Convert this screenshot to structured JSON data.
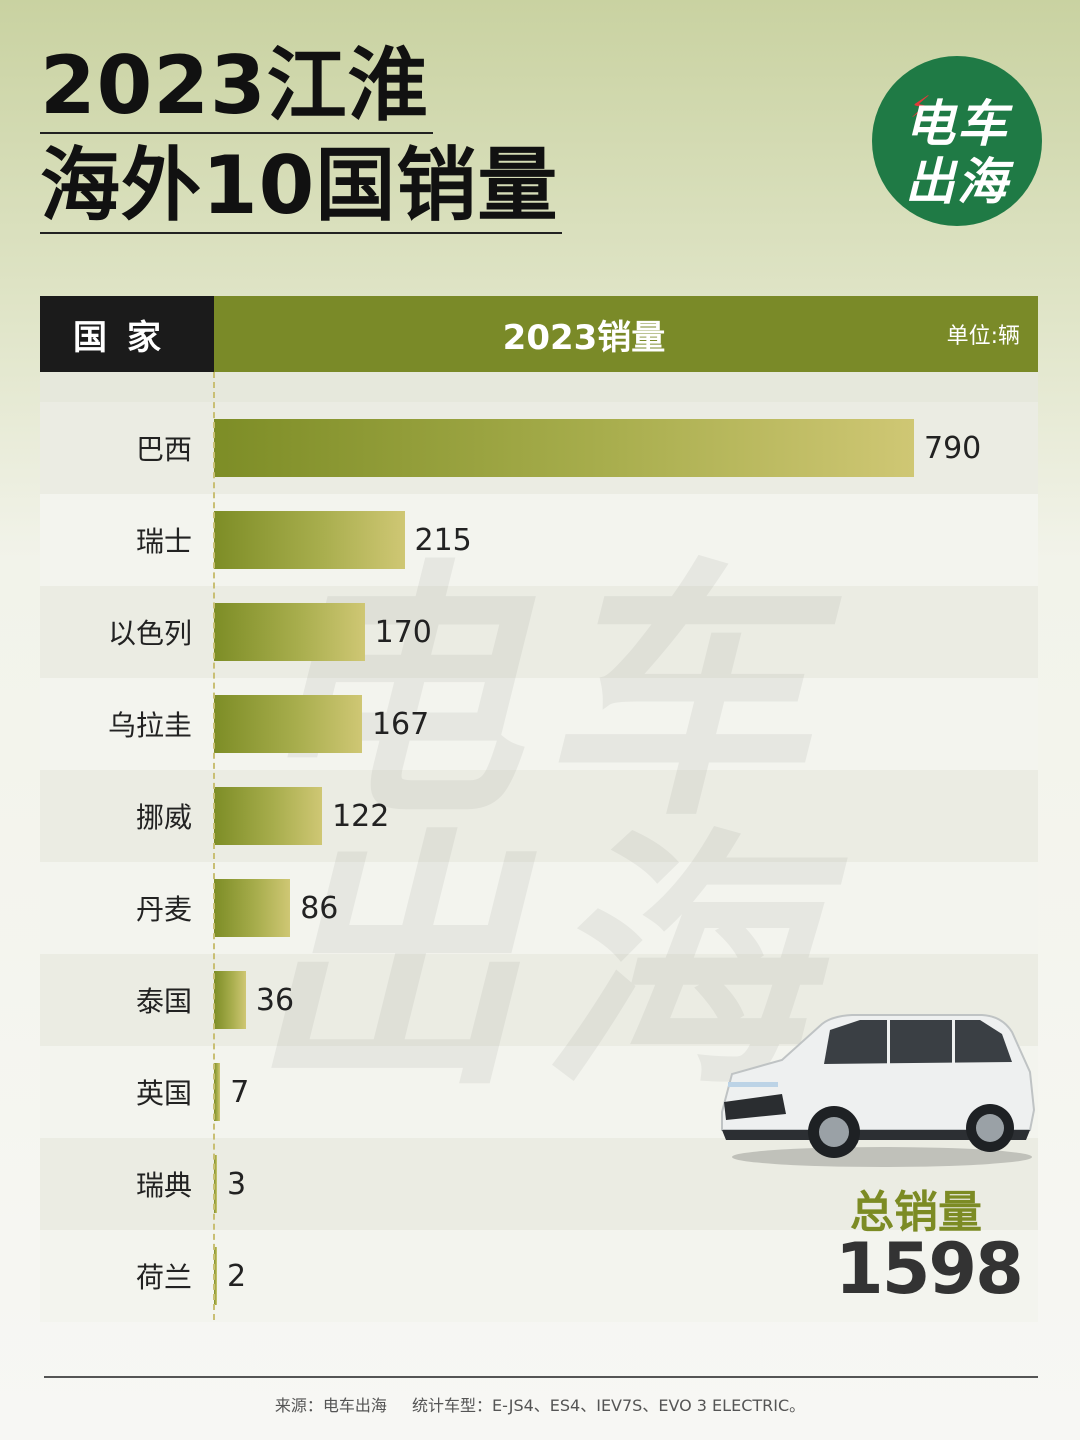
{
  "title": {
    "line1": "2023江淮",
    "line2": "海外10国销量"
  },
  "logo": {
    "line1": "电车",
    "line2": "出海"
  },
  "watermark": {
    "line1": "电车",
    "line2": "出海"
  },
  "table": {
    "header_country": "国家",
    "header_sales": "2023销量",
    "unit": "单位:辆"
  },
  "chart_data": {
    "type": "bar",
    "orientation": "horizontal",
    "categories": [
      "巴西",
      "瑞士",
      "以色列",
      "乌拉圭",
      "挪威",
      "丹麦",
      "泰国",
      "英国",
      "瑞典",
      "荷兰"
    ],
    "values": [
      790,
      215,
      170,
      167,
      122,
      86,
      36,
      7,
      3,
      2
    ],
    "title": "2023江淮 海外10国销量",
    "xlabel": "2023销量",
    "ylabel": "国家",
    "unit": "单位:辆",
    "xlim": [
      0,
      790
    ],
    "grid": false,
    "legend": "none",
    "bar_color": "#7d8d26"
  },
  "summary": {
    "label": "总销量",
    "value": "1598"
  },
  "footer": {
    "source": "来源：电车出海",
    "models": "统计车型：E-JS4、ES4、IEV7S、EVO 3 ELECTRIC。"
  },
  "colors": {
    "header_green": "#7a8a28",
    "header_dark": "#1b1b1b",
    "logo_green": "#1f7a45",
    "total_label": "#7c8b24"
  }
}
